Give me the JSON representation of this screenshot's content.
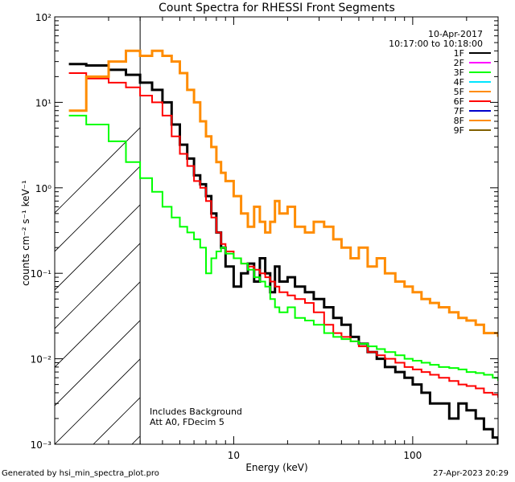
{
  "chart_data": {
    "type": "line",
    "title": "Count Spectra for RHESSI Front Segments",
    "xlabel": "Energy (keV)",
    "ylabel": "counts cm⁻² s⁻¹ keV⁻¹",
    "xscale": "log",
    "yscale": "log",
    "xlim": [
      1.0,
      300.0
    ],
    "ylim": [
      0.001,
      100
    ],
    "x_ticks": [
      {
        "value": 10,
        "label": "10"
      },
      {
        "value": 100,
        "label": "100"
      }
    ],
    "y_ticks": [
      {
        "value": 0.001,
        "label": "10⁻³"
      },
      {
        "value": 0.01,
        "label": "10⁻²"
      },
      {
        "value": 0.1,
        "label": "10⁻¹"
      },
      {
        "value": 1,
        "label": "10⁰"
      },
      {
        "value": 10,
        "label": "10¹"
      },
      {
        "value": 100,
        "label": "10²"
      }
    ],
    "shaded_region": {
      "xmin": 1.0,
      "xmax": 3.0,
      "pattern": "diagonal-hatch"
    },
    "date": "10-Apr-2017",
    "time_range": "10:17:00 to 10:18:00",
    "annotations": [
      "Includes Background",
      "Att A0, FDecim 5"
    ],
    "legend": [
      {
        "name": "1F",
        "color": "#000000"
      },
      {
        "name": "2F",
        "color": "#ff00ff"
      },
      {
        "name": "3F",
        "color": "#00ff00"
      },
      {
        "name": "4F",
        "color": "#00e5ff"
      },
      {
        "name": "5F",
        "color": "#ff8c00"
      },
      {
        "name": "6F",
        "color": "#ff0000"
      },
      {
        "name": "7F",
        "color": "#0000cc"
      },
      {
        "name": "8F",
        "color": "#ff8c00"
      },
      {
        "name": "9F",
        "color": "#806000"
      }
    ],
    "series": [
      {
        "name": "1F",
        "color": "#000000",
        "width": 3,
        "x": [
          1.2,
          1.5,
          2.0,
          2.5,
          3.0,
          3.5,
          4.0,
          4.5,
          5.0,
          5.5,
          6.0,
          6.5,
          7.0,
          7.5,
          8.0,
          8.5,
          9.0,
          10,
          11,
          12,
          13,
          14,
          15,
          16,
          17,
          18,
          20,
          22,
          25,
          28,
          32,
          36,
          40,
          45,
          50,
          56,
          63,
          70,
          80,
          90,
          100,
          112,
          125,
          140,
          160,
          180,
          200,
          225,
          250,
          280,
          300
        ],
        "y": [
          28,
          27,
          24,
          21,
          17,
          14,
          10,
          5.5,
          3.2,
          2.2,
          1.4,
          1.1,
          0.8,
          0.5,
          0.3,
          0.2,
          0.12,
          0.07,
          0.1,
          0.13,
          0.08,
          0.15,
          0.1,
          0.06,
          0.12,
          0.08,
          0.09,
          0.07,
          0.06,
          0.05,
          0.04,
          0.03,
          0.025,
          0.018,
          0.015,
          0.012,
          0.01,
          0.008,
          0.007,
          0.006,
          0.005,
          0.004,
          0.003,
          0.003,
          0.002,
          0.003,
          0.0025,
          0.002,
          0.0015,
          0.0012,
          0.001
        ]
      },
      {
        "name": "6F",
        "color": "#ff0000",
        "width": 2,
        "x": [
          1.2,
          1.5,
          2.0,
          2.5,
          3.0,
          3.5,
          4.0,
          4.5,
          5.0,
          5.5,
          6.0,
          6.5,
          7.0,
          7.5,
          8.0,
          8.5,
          9.0,
          10,
          11,
          12,
          13,
          14,
          15,
          16,
          17,
          18,
          20,
          22,
          25,
          28,
          32,
          36,
          40,
          45,
          50,
          56,
          63,
          70,
          80,
          90,
          100,
          112,
          125,
          140,
          160,
          180,
          200,
          225,
          250,
          280,
          300
        ],
        "y": [
          22,
          19,
          17,
          15,
          12,
          10,
          7,
          4,
          2.5,
          1.8,
          1.2,
          1.0,
          0.7,
          0.45,
          0.3,
          0.22,
          0.18,
          0.15,
          0.13,
          0.12,
          0.11,
          0.1,
          0.09,
          0.08,
          0.07,
          0.06,
          0.055,
          0.05,
          0.045,
          0.035,
          0.025,
          0.02,
          0.018,
          0.016,
          0.014,
          0.012,
          0.011,
          0.01,
          0.009,
          0.008,
          0.0075,
          0.007,
          0.0065,
          0.006,
          0.0055,
          0.005,
          0.0048,
          0.0045,
          0.004,
          0.0038,
          0.0035
        ]
      },
      {
        "name": "3F",
        "color": "#00ff00",
        "width": 2,
        "x": [
          1.2,
          1.5,
          2.0,
          2.5,
          3.0,
          3.5,
          4.0,
          4.5,
          5.0,
          5.5,
          6.0,
          6.5,
          7.0,
          7.5,
          8.0,
          8.5,
          9.0,
          10,
          11,
          12,
          13,
          14,
          15,
          16,
          17,
          18,
          20,
          22,
          25,
          28,
          32,
          36,
          40,
          45,
          50,
          56,
          63,
          70,
          80,
          90,
          100,
          112,
          125,
          140,
          160,
          180,
          200,
          225,
          250,
          280,
          300
        ],
        "y": [
          7,
          5.5,
          3.5,
          2.0,
          1.3,
          0.9,
          0.6,
          0.45,
          0.35,
          0.3,
          0.25,
          0.2,
          0.1,
          0.15,
          0.18,
          0.2,
          0.17,
          0.15,
          0.13,
          0.11,
          0.09,
          0.08,
          0.07,
          0.05,
          0.04,
          0.035,
          0.04,
          0.03,
          0.028,
          0.025,
          0.02,
          0.018,
          0.017,
          0.016,
          0.015,
          0.014,
          0.013,
          0.012,
          0.011,
          0.01,
          0.0095,
          0.009,
          0.0085,
          0.008,
          0.0078,
          0.0075,
          0.007,
          0.0068,
          0.0065,
          0.006,
          0.0055
        ]
      },
      {
        "name": "8F",
        "color": "#ff8c00",
        "width": 3,
        "x": [
          1.2,
          1.5,
          2.0,
          2.5,
          3.0,
          3.5,
          4.0,
          4.5,
          5.0,
          5.5,
          6.0,
          6.5,
          7.0,
          7.5,
          8.0,
          8.5,
          9.0,
          10,
          11,
          12,
          13,
          14,
          15,
          16,
          17,
          18,
          20,
          22,
          25,
          28,
          32,
          36,
          40,
          45,
          50,
          56,
          63,
          70,
          80,
          90,
          100,
          112,
          125,
          140,
          160,
          180,
          200,
          225,
          250,
          280,
          300
        ],
        "y": [
          8,
          20,
          30,
          40,
          35,
          40,
          35,
          30,
          22,
          14,
          10,
          6,
          4,
          3,
          2,
          1.5,
          1.2,
          0.8,
          0.5,
          0.35,
          0.6,
          0.4,
          0.3,
          0.4,
          0.7,
          0.5,
          0.6,
          0.35,
          0.3,
          0.4,
          0.35,
          0.25,
          0.2,
          0.15,
          0.2,
          0.12,
          0.15,
          0.1,
          0.08,
          0.07,
          0.06,
          0.05,
          0.045,
          0.04,
          0.035,
          0.03,
          0.028,
          0.025,
          0.02,
          0.02,
          0.018
        ]
      }
    ]
  }
}
